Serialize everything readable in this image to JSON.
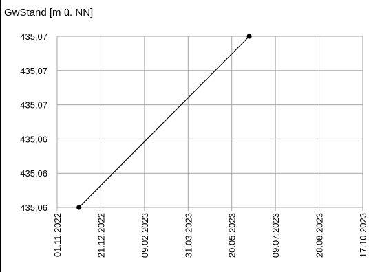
{
  "chart_data": {
    "type": "line",
    "ylabel": "GwStand [m ü. NN]",
    "xlabel": "",
    "title": "",
    "x_ticks": [
      "01.11.2022",
      "21.12.2022",
      "09.02.2023",
      "31.03.2023",
      "20.05.2023",
      "09.07.2023",
      "28.08.2023",
      "17.10.2023"
    ],
    "y_ticks": [
      "435,06",
      "435,06",
      "435,06",
      "435,07",
      "435,07",
      "435,07"
    ],
    "xlim": [
      "2022-11-01",
      "2023-10-17"
    ],
    "series": [
      {
        "x": [
          "2022-11-26",
          "2023-06-09"
        ],
        "y": [
          435.06,
          435.07
        ],
        "color": "#000000"
      }
    ],
    "grid": true,
    "legend": "none"
  }
}
